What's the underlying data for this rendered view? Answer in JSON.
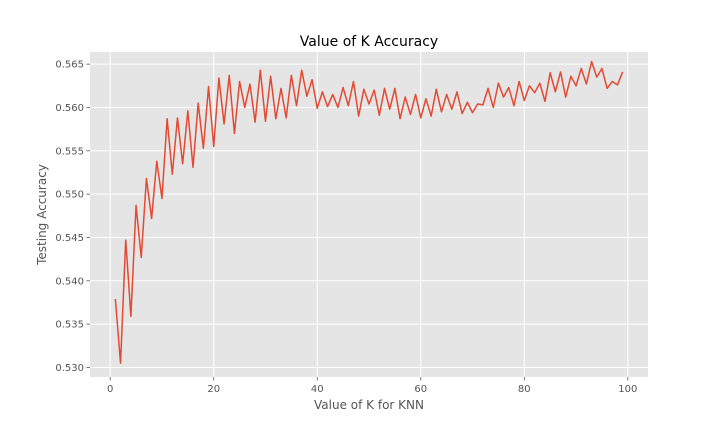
{
  "chart_data": {
    "type": "line",
    "title": "Value of K Accuracy",
    "xlabel": "Value of K for KNN",
    "ylabel": "Testing Accuracy",
    "xlim": [
      -3.9,
      103.9
    ],
    "ylim": [
      0.5289,
      0.5664
    ],
    "xticks": [
      0,
      20,
      40,
      60,
      80,
      100
    ],
    "yticks": [
      0.53,
      0.535,
      0.54,
      0.545,
      0.55,
      0.555,
      0.56,
      0.565
    ],
    "ytick_labels": [
      "0.530",
      "0.535",
      "0.540",
      "0.545",
      "0.550",
      "0.555",
      "0.560",
      "0.565"
    ],
    "grid": true,
    "colors": {
      "line": "#E24A33",
      "background": "#E5E5E5",
      "grid": "#FFFFFF"
    },
    "series": [
      {
        "x": [
          1,
          2,
          3,
          4,
          5,
          6,
          7,
          8,
          9,
          10,
          11,
          12,
          13,
          14,
          15,
          16,
          17,
          18,
          19,
          20,
          21,
          22,
          23,
          24,
          25,
          26,
          27,
          28,
          29,
          30,
          31,
          32,
          33,
          34,
          35,
          36,
          37,
          38,
          39,
          40,
          41,
          42,
          43,
          44,
          45,
          46,
          47,
          48,
          49,
          50,
          51,
          52,
          53,
          54,
          55,
          56,
          57,
          58,
          59,
          60,
          61,
          62,
          63,
          64,
          65,
          66,
          67,
          68,
          69,
          70,
          71,
          72,
          73,
          74,
          75,
          76,
          77,
          78,
          79,
          80,
          81,
          82,
          83,
          84,
          85,
          86,
          87,
          88,
          89,
          90,
          91,
          92,
          93,
          94,
          95,
          96,
          97,
          98,
          99
        ],
        "values": [
          0.5379,
          0.5305,
          0.5447,
          0.5359,
          0.5487,
          0.5427,
          0.5518,
          0.5472,
          0.5538,
          0.5495,
          0.5587,
          0.5523,
          0.5588,
          0.5535,
          0.5596,
          0.5531,
          0.5605,
          0.5553,
          0.5624,
          0.5555,
          0.5634,
          0.5581,
          0.5637,
          0.557,
          0.563,
          0.56,
          0.5627,
          0.5583,
          0.5643,
          0.5584,
          0.5636,
          0.5587,
          0.5622,
          0.5588,
          0.5637,
          0.5602,
          0.5643,
          0.5613,
          0.5632,
          0.5599,
          0.5618,
          0.5601,
          0.5615,
          0.56,
          0.5623,
          0.5602,
          0.563,
          0.559,
          0.5621,
          0.5604,
          0.562,
          0.5591,
          0.5622,
          0.5598,
          0.5622,
          0.5587,
          0.5612,
          0.5592,
          0.5615,
          0.5588,
          0.561,
          0.559,
          0.5621,
          0.5595,
          0.5615,
          0.5598,
          0.5618,
          0.5593,
          0.5606,
          0.5594,
          0.5604,
          0.5603,
          0.5622,
          0.56,
          0.5628,
          0.5612,
          0.5623,
          0.5602,
          0.563,
          0.5608,
          0.5625,
          0.5617,
          0.5628,
          0.5607,
          0.564,
          0.5618,
          0.5641,
          0.5612,
          0.5636,
          0.5625,
          0.5645,
          0.5627,
          0.5653,
          0.5635,
          0.5645,
          0.5622,
          0.563,
          0.5626,
          0.5641
        ]
      }
    ]
  }
}
